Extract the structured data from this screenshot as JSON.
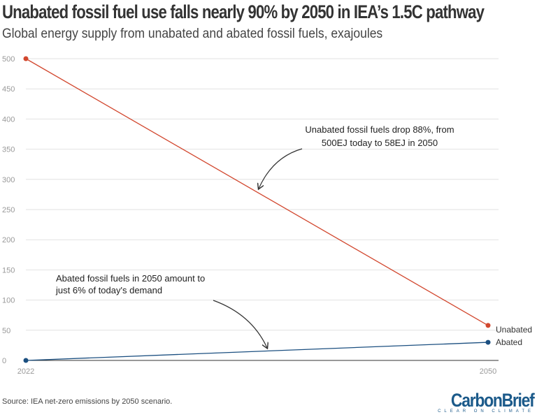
{
  "title": "Unabated fossil fuel use falls nearly 90% by 2050 in IEA’s 1.5C pathway",
  "subtitle": "Global energy supply from unabated and abated fossil fuels, exajoules",
  "source": "Source: IEA net-zero emissions by 2050 scenario.",
  "logo": {
    "name": "CarbonBrief",
    "tagline": "CLEAR ON CLIMATE"
  },
  "chart_data": {
    "type": "line",
    "title": "Unabated fossil fuel use falls nearly 90% by 2050 in IEA’s 1.5C pathway",
    "subtitle": "Global energy supply from unabated and abated fossil fuels, exajoules",
    "x": [
      2022,
      2050
    ],
    "x_tick_labels": [
      "2022",
      "2050"
    ],
    "ylim": [
      0,
      500
    ],
    "y_ticks": [
      0,
      50,
      100,
      150,
      200,
      250,
      300,
      350,
      400,
      450,
      500
    ],
    "grid": true,
    "series": [
      {
        "name": "Unabated",
        "values": [
          500,
          58
        ],
        "color": "#d2472e"
      },
      {
        "name": "Abated",
        "values": [
          0,
          30
        ],
        "color": "#1b4f80"
      }
    ],
    "annotations": [
      {
        "lines": [
          "Unabated fossil fuels drop 88%, from",
          "500EJ today to 58EJ in 2050"
        ]
      },
      {
        "lines": [
          "Abated fossil fuels in 2050 amount to",
          "just 6% of today's demand"
        ]
      }
    ]
  }
}
